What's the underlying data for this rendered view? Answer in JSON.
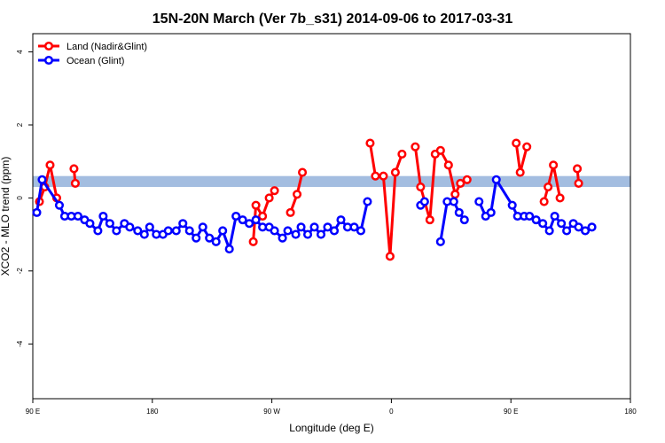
{
  "chart_data": {
    "type": "line",
    "title": "15N-20N March (Ver 7b_s31)   2014-09-06 to 2017-03-31",
    "xlabel": "Longitude (deg E)",
    "ylabel": "XCO2 - MLO trend (ppm)",
    "xlim": [
      90,
      540
    ],
    "ylim": [
      -5.5,
      4.5
    ],
    "xticks": [
      {
        "value": 90,
        "label": "90 E"
      },
      {
        "value": 180,
        "label": "180"
      },
      {
        "value": 270,
        "label": "90 W"
      },
      {
        "value": 360,
        "label": "0"
      },
      {
        "value": 450,
        "label": "90 E"
      },
      {
        "value": 540,
        "label": "180"
      }
    ],
    "yticks": [
      -4,
      -2,
      0,
      2,
      4
    ],
    "legend": "top-left",
    "band": {
      "range": [
        0.3,
        0.6
      ],
      "color": "#a3bde0"
    },
    "series": [
      {
        "name": "Land (Nadir&Glint)",
        "color": "#ff0000",
        "x": [
          95,
          99,
          103,
          108,
          null,
          121,
          122,
          null,
          256,
          258,
          263,
          268,
          272,
          null,
          284,
          289,
          293,
          null,
          344,
          348,
          354,
          359,
          363,
          368,
          null,
          378,
          382,
          389,
          393,
          397,
          403,
          408,
          412,
          417,
          null,
          454,
          457,
          462,
          null,
          475,
          478,
          482,
          487,
          null,
          500,
          501
        ],
        "values": [
          -0.1,
          0.3,
          0.9,
          0.0,
          null,
          0.8,
          0.4,
          null,
          -1.2,
          -0.2,
          -0.5,
          0.0,
          0.2,
          null,
          -0.4,
          0.1,
          0.7,
          null,
          1.5,
          0.6,
          0.6,
          -1.6,
          0.7,
          1.2,
          null,
          1.4,
          0.3,
          -0.6,
          1.2,
          1.3,
          0.9,
          0.1,
          0.4,
          0.5,
          null,
          1.5,
          0.7,
          1.4,
          null,
          -0.1,
          0.3,
          0.9,
          0.0,
          null,
          0.8,
          0.4
        ]
      },
      {
        "name": "Ocean (Glint)",
        "color": "#0000ff",
        "x": [
          93,
          97,
          110,
          114,
          119,
          124,
          129,
          133,
          139,
          143,
          148,
          153,
          159,
          163,
          169,
          174,
          178,
          183,
          188,
          192,
          198,
          203,
          208,
          213,
          218,
          223,
          228,
          233,
          238,
          243,
          248,
          253,
          258,
          263,
          268,
          272,
          278,
          282,
          288,
          292,
          297,
          302,
          307,
          312,
          317,
          322,
          327,
          332,
          337,
          342,
          null,
          382,
          385,
          null,
          397,
          402,
          407,
          411,
          415,
          null,
          426,
          431,
          435,
          439,
          451,
          455,
          460,
          464,
          469,
          474,
          479,
          483,
          488,
          492,
          497,
          501,
          506,
          511
        ],
        "values": [
          -0.4,
          0.5,
          -0.2,
          -0.5,
          -0.5,
          -0.5,
          -0.6,
          -0.7,
          -0.9,
          -0.5,
          -0.7,
          -0.9,
          -0.7,
          -0.8,
          -0.9,
          -1.0,
          -0.8,
          -1.0,
          -1.0,
          -0.9,
          -0.9,
          -0.7,
          -0.9,
          -1.1,
          -0.8,
          -1.1,
          -1.2,
          -0.9,
          -1.4,
          -0.5,
          -0.6,
          -0.7,
          -0.6,
          -0.8,
          -0.8,
          -0.9,
          -1.1,
          -0.9,
          -1.0,
          -0.8,
          -1.0,
          -0.8,
          -1.0,
          -0.8,
          -0.9,
          -0.6,
          -0.8,
          -0.8,
          -0.9,
          -0.1,
          null,
          -0.2,
          -0.1,
          null,
          -1.2,
          -0.1,
          -0.1,
          -0.4,
          -0.6,
          null,
          -0.1,
          -0.5,
          -0.4,
          0.5,
          -0.2,
          -0.5,
          -0.5,
          -0.5,
          -0.6,
          -0.7,
          -0.9,
          -0.5,
          -0.7,
          -0.9,
          -0.7,
          -0.8,
          -0.9,
          -0.8
        ]
      }
    ]
  }
}
